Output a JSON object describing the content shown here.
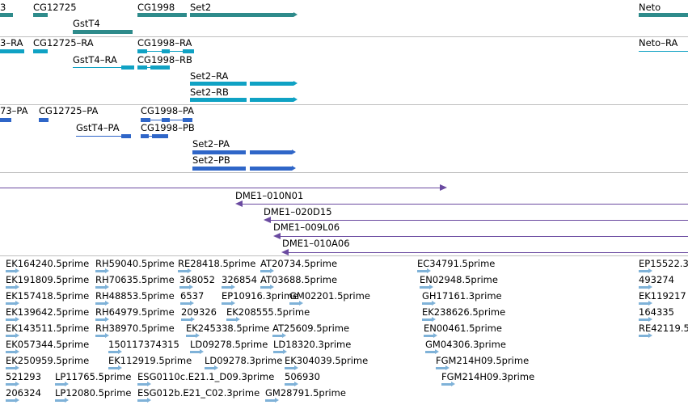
{
  "colors": {
    "gene": "#2e8b8b",
    "transcript": "#10a2c4",
    "protein": "#2f66c8",
    "clone": "#6a4aa0",
    "est": "#7fb2d8",
    "separator": "#bfbfbf"
  },
  "genes": {
    "items": [
      {
        "label": "3"
      },
      {
        "label": "CG12725"
      },
      {
        "label": "GstT4"
      },
      {
        "label": "CG1998"
      },
      {
        "label": "Set2"
      },
      {
        "label": "Neto"
      }
    ]
  },
  "transcripts": {
    "items": [
      {
        "label": "3–RA"
      },
      {
        "label": "CG12725–RA"
      },
      {
        "label": "GstT4–RA"
      },
      {
        "label": "CG1998–RA"
      },
      {
        "label": "CG1998–RB"
      },
      {
        "label": "Set2–RA"
      },
      {
        "label": "Set2–RB"
      },
      {
        "label": "Neto–RA"
      }
    ]
  },
  "proteins": {
    "items": [
      {
        "label": "73–PA"
      },
      {
        "label": "CG12725–PA"
      },
      {
        "label": "GstT4–PA"
      },
      {
        "label": "CG1998–PA"
      },
      {
        "label": "CG1998–PB"
      },
      {
        "label": "Set2–PA"
      },
      {
        "label": "Set2–PB"
      }
    ]
  },
  "clones": {
    "items": [
      {
        "label": "DME1–010N01"
      },
      {
        "label": "DME1–020D15"
      },
      {
        "label": "DME1–009L06"
      },
      {
        "label": "DME1–010A06"
      }
    ]
  },
  "ests": {
    "labels": [
      "EK164240.5prime",
      "RH59040.5prime",
      "RE28418.5prime",
      "AT20734.5prime",
      "EC34791.5prime",
      "EP15522.3",
      "EK191809.5prime",
      "RH70635.5prime",
      "368052",
      "326854",
      "AT03688.5prime",
      "EN02948.5prime",
      "493274",
      "EK157418.5prime",
      "RH48853.5prime",
      "6537",
      "EP10916.3prime",
      "GM02201.5prime",
      "GH17161.3prime",
      "EK119217",
      "EK139642.5prime",
      "RH64979.5prime",
      "209326",
      "EK208555.5prime",
      "EK238626.5prime",
      "164335",
      "EK143511.5prime",
      "RH38970.5prime",
      "EK245338.5prime",
      "AT25609.5prime",
      "EN00461.5prime",
      "RE42119.5",
      "EK057344.5prime",
      "150117374315",
      "LD09278.5prime",
      "LD18320.3prime",
      "GM04306.3prime",
      "EK250959.5prime",
      "EK112919.5prime",
      "LD09278.3prime",
      "EK304039.5prime",
      "FGM214H09.5prime",
      "521293",
      "LP11765.5prime",
      "ESG0110c.E21.1_D09.3prime",
      "506930",
      "FGM214H09.3prime",
      "206324",
      "LP12080.5prime",
      "ESG012b.E21_C02.3prime",
      "GM28791.5prime"
    ]
  }
}
